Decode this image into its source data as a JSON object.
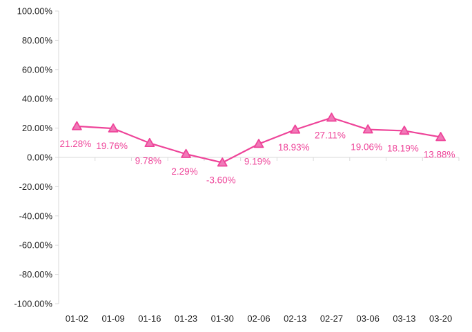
{
  "chart_data": {
    "type": "line",
    "categories": [
      "01-02",
      "01-09",
      "01-16",
      "01-23",
      "01-30",
      "02-06",
      "02-13",
      "02-27",
      "03-06",
      "03-13",
      "03-20"
    ],
    "series": [
      {
        "values": [
          21.28,
          19.76,
          9.78,
          2.29,
          -3.6,
          9.19,
          18.93,
          27.11,
          19.06,
          18.19,
          13.88
        ],
        "labels": [
          "21.28%",
          "19.76%",
          "9.78%",
          "2.29%",
          "-3.60%",
          "9.19%",
          "18.93%",
          "27.11%",
          "19.06%",
          "18.19%",
          "13.88%"
        ],
        "color": "#ee4499",
        "marker": "triangle",
        "marker_fill": "#f07ab8"
      }
    ],
    "yticks": [
      "100.00%",
      "80.00%",
      "60.00%",
      "40.00%",
      "20.00%",
      "0.00%",
      "-20.00%",
      "-40.00%",
      "-60.00%",
      "-80.00%",
      "-100.00%"
    ],
    "ylim": [
      -100,
      100
    ],
    "ytick_step": 20,
    "grid": false,
    "legend": "none"
  }
}
